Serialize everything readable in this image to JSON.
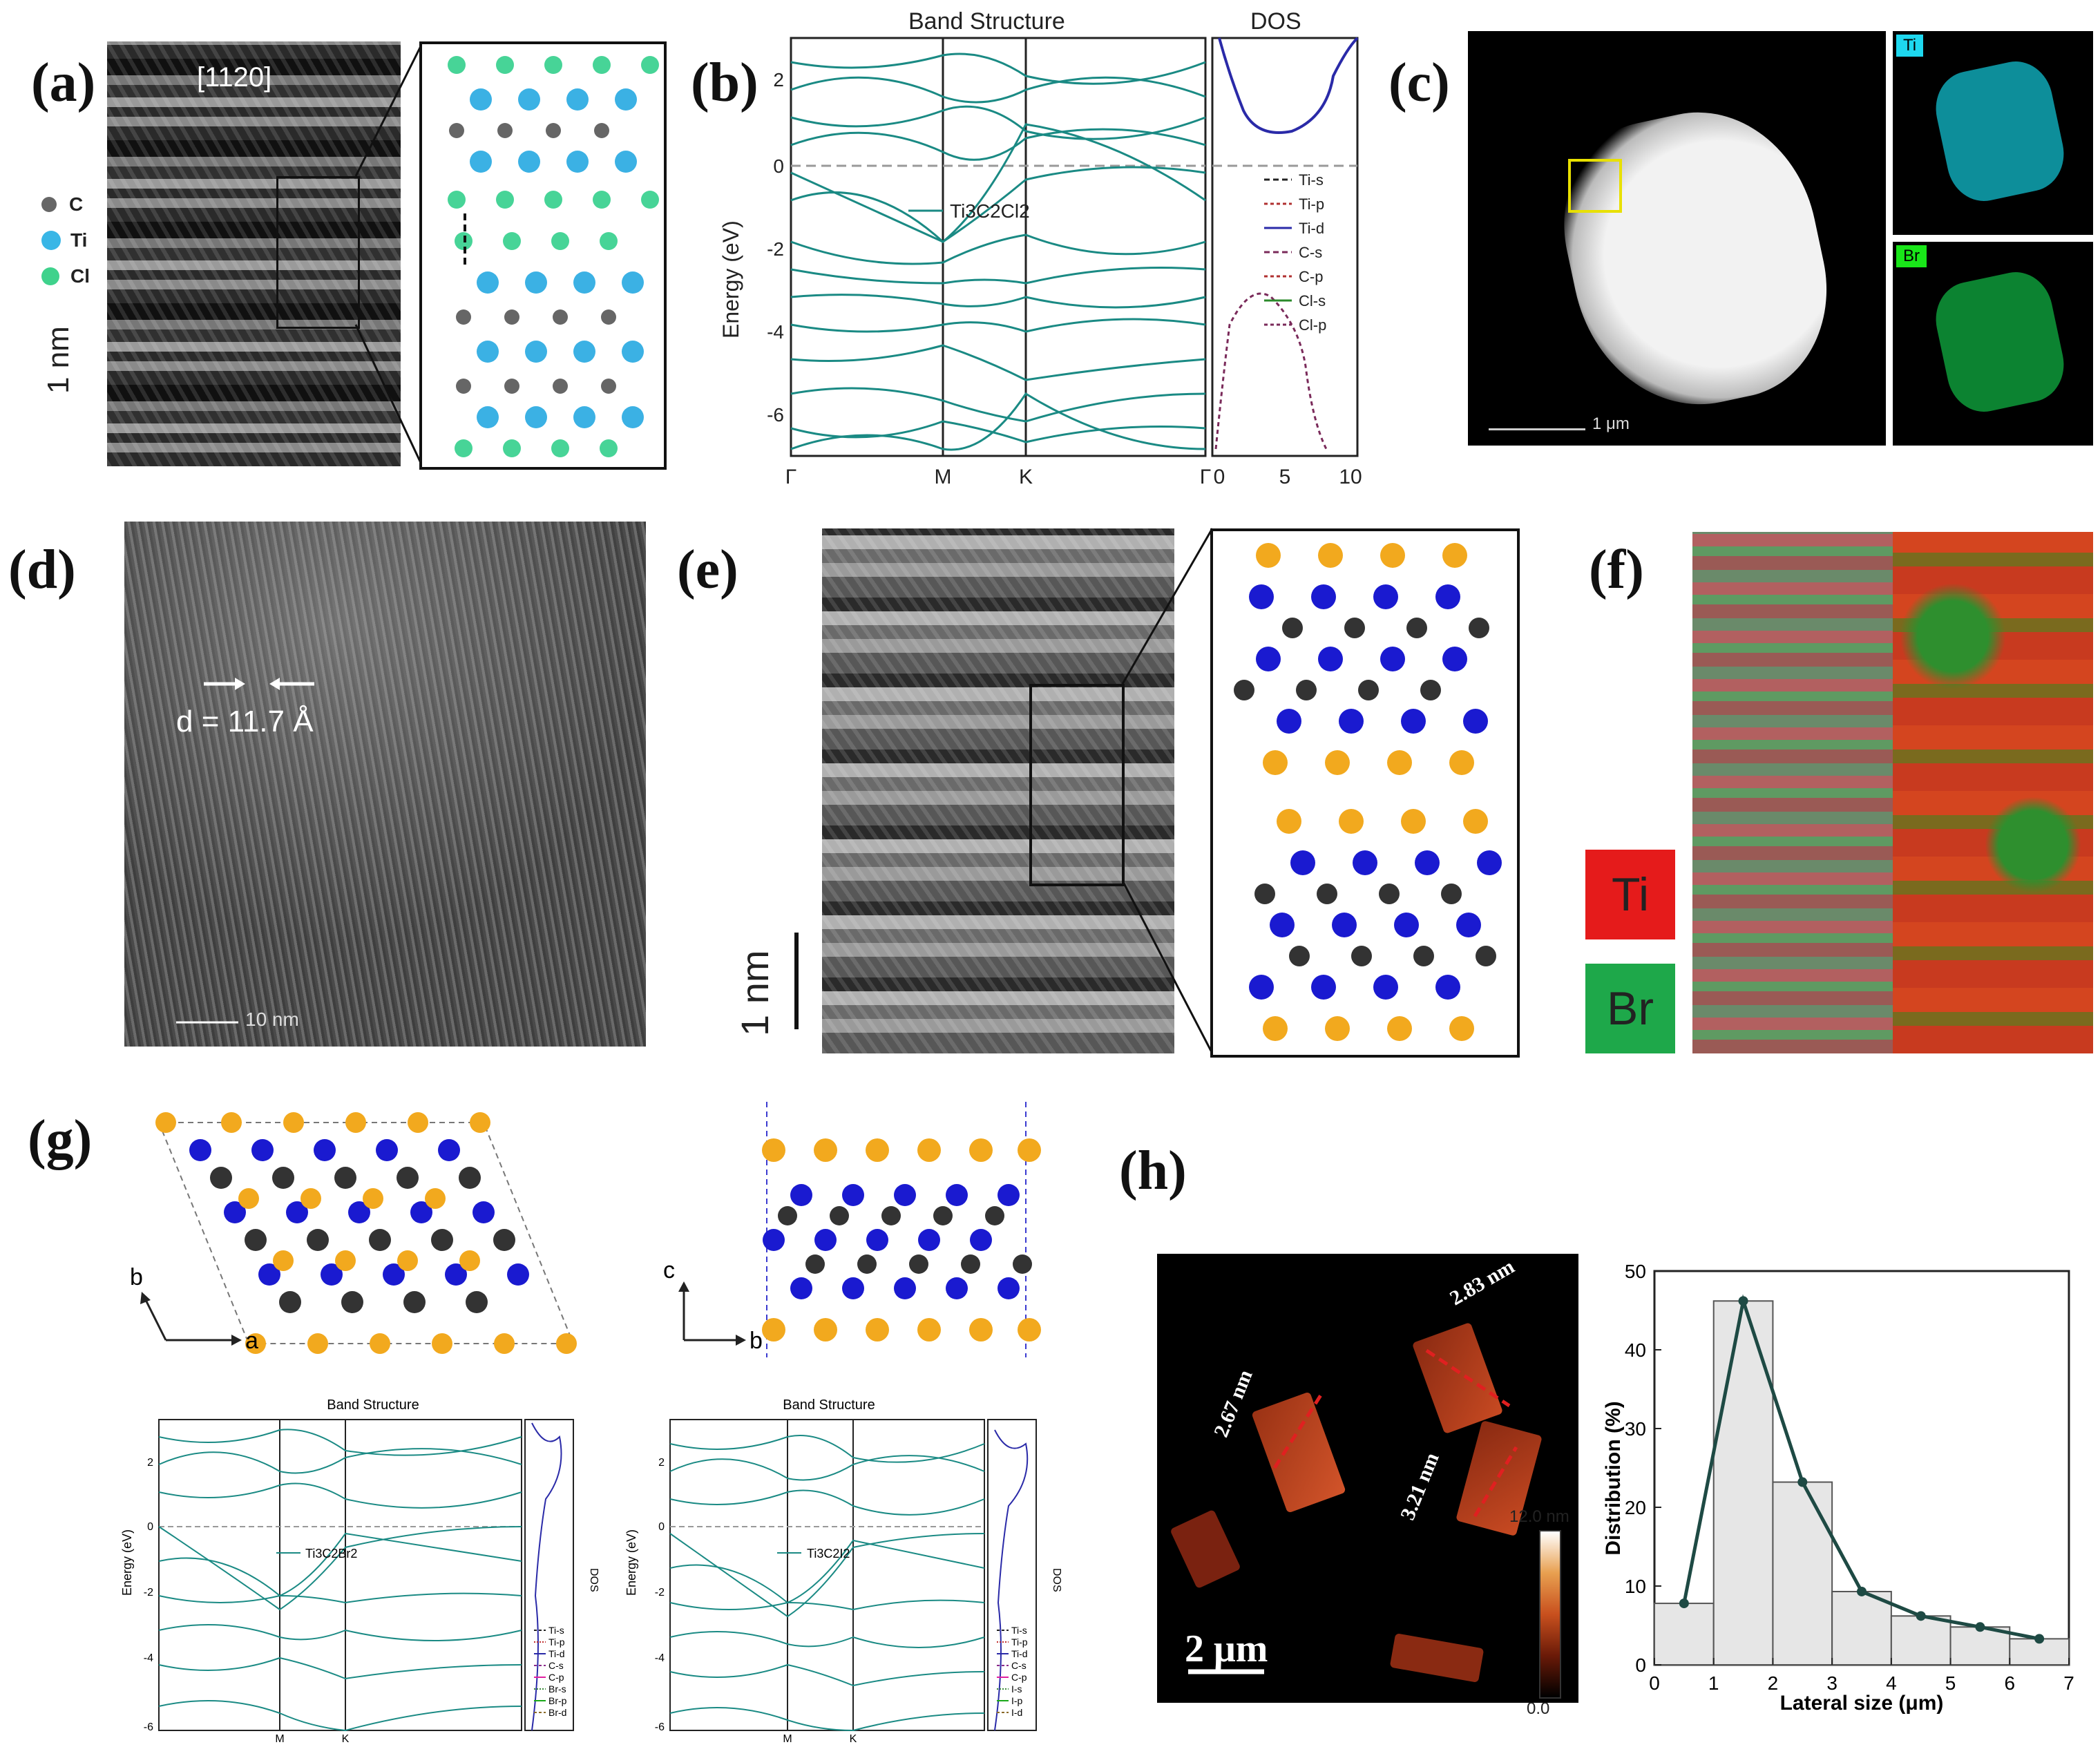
{
  "panels": {
    "a": {
      "label": "(a)",
      "zone_axis": "[1120]",
      "scale_bar": "1 nm",
      "legend": [
        "C",
        "Ti",
        "Cl"
      ]
    },
    "b": {
      "label": "(b)",
      "title_bands": "Band Structure",
      "title_dos": "DOS",
      "ylabel": "Energy (eV)",
      "kpoints": [
        "Γ",
        "M",
        "K",
        "Γ"
      ],
      "material": "Ti3C2Cl2",
      "dos_legend": [
        "Ti-s",
        "Ti-p",
        "Ti-d",
        "C-s",
        "C-p",
        "Cl-s",
        "Cl-p"
      ],
      "y_ticks": [
        "2",
        "0",
        "-2",
        "-4",
        "-6"
      ],
      "dos_ticks": [
        "0",
        "5",
        "10"
      ]
    },
    "c": {
      "label": "(c)",
      "scale_bar": "1 μm",
      "maps": [
        "Ti",
        "Br"
      ]
    },
    "d": {
      "label": "(d)",
      "d_spacing": "d = 11.7 Å",
      "scale_bar": "10 nm"
    },
    "e": {
      "label": "(e)",
      "scale_bar": "1 nm"
    },
    "f": {
      "label": "(f)",
      "legend": [
        "Ti",
        "Br"
      ]
    },
    "g": {
      "label": "(g)",
      "axes_left": [
        "a",
        "b"
      ],
      "axes_right": [
        "b",
        "c"
      ],
      "plot_title": "Band Structure",
      "ylabel": "Energy (eV)",
      "dos_label": "DOS",
      "kpoints": [
        "M",
        "K"
      ],
      "left_material": "Ti3C2Br2",
      "right_material": "Ti3C2I2",
      "left_dos_legend": [
        "Ti-s",
        "Ti-p",
        "Ti-d",
        "C-s",
        "C-p",
        "Br-s",
        "Br-p",
        "Br-d"
      ],
      "right_dos_legend": [
        "Ti-s",
        "Ti-p",
        "Ti-d",
        "C-s",
        "C-p",
        "I-s",
        "I-p",
        "I-d"
      ],
      "y_ticks": [
        "2",
        "0",
        "-2",
        "-4",
        "-6"
      ]
    },
    "h": {
      "label": "(h)",
      "heights": [
        "2.83 nm",
        "2.67 nm",
        "3.21 nm"
      ],
      "scale_bar": "2 μm",
      "color_max": "12.0 nm",
      "color_min": "0.0"
    }
  },
  "chart_data": {
    "type": "bar",
    "xlabel": "Lateral size (μm)",
    "ylabel": "Distribution (%)",
    "xlim": [
      0,
      7
    ],
    "ylim": [
      0,
      50
    ],
    "x_ticks": [
      "0",
      "1",
      "2",
      "3",
      "4",
      "5",
      "6",
      "7"
    ],
    "y_ticks": [
      "0",
      "10",
      "20",
      "30",
      "40",
      "50"
    ],
    "categories": [
      "0-1",
      "1-2",
      "2-3",
      "3-4",
      "4-5",
      "5-6",
      "6-7"
    ],
    "values": [
      7.8,
      46.2,
      23.2,
      9.3,
      6.2,
      4.8,
      3.3
    ],
    "line": {
      "x": [
        0.5,
        1.5,
        2.5,
        3.5,
        4.5,
        5.5,
        6.5
      ],
      "y": [
        7.8,
        46.2,
        23.2,
        9.3,
        6.2,
        4.8,
        3.3
      ]
    }
  }
}
